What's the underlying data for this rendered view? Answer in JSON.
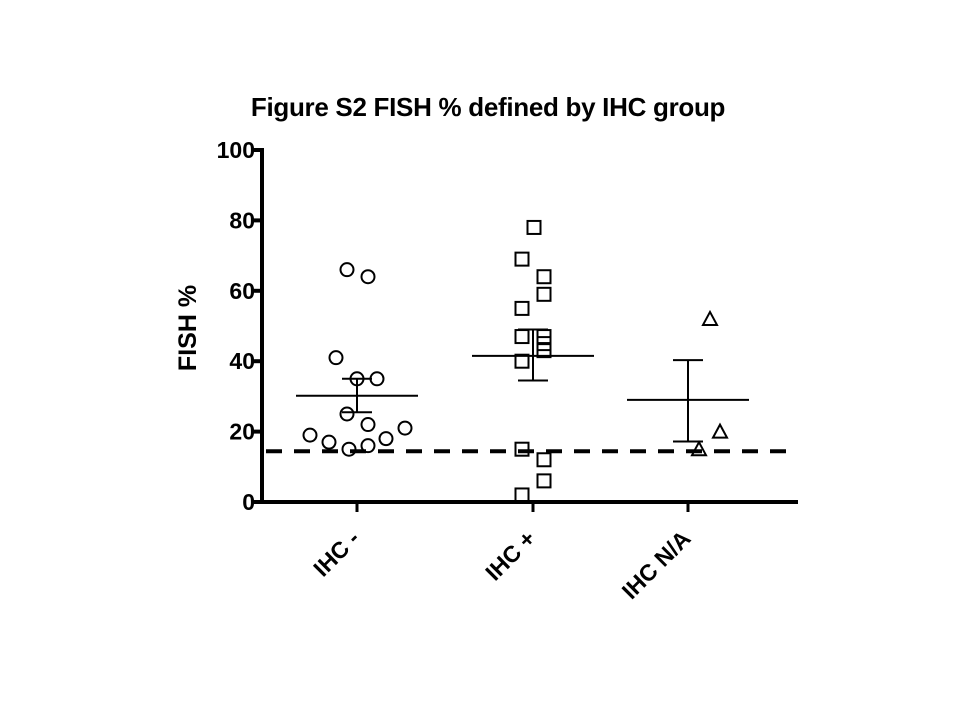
{
  "chart_data": {
    "type": "scatter",
    "subtype": "column scatter with mean and SEM",
    "title": "Figure S2   FISH % defined by IHC group",
    "xlabel": "",
    "ylabel": "FISH %",
    "ylim": [
      0,
      100
    ],
    "yticks": [
      0,
      20,
      40,
      60,
      80,
      100
    ],
    "grid": false,
    "legend": null,
    "categories": [
      "IHC -",
      "IHC +",
      "IHC N/A"
    ],
    "series": [
      {
        "name": "IHC -",
        "marker": "circle",
        "values": [
          66,
          64,
          41,
          35,
          35,
          25,
          22,
          19,
          17,
          15,
          16,
          18,
          21
        ],
        "offsets": [
          -10,
          11,
          -21,
          0,
          20,
          -10,
          11,
          -47,
          -28,
          -8,
          11,
          29,
          48
        ],
        "mean": 30.2,
        "sem_upper": 35.0,
        "sem_lower": 25.5
      },
      {
        "name": "IHC +",
        "marker": "square",
        "values": [
          78,
          69,
          64,
          59,
          55,
          47,
          47,
          45,
          43,
          40,
          15,
          12,
          6,
          2
        ],
        "offsets": [
          1,
          -11,
          11,
          11,
          -11,
          -11,
          11,
          11,
          11,
          -11,
          -11,
          11,
          11,
          -11
        ],
        "mean": 41.5,
        "sem_upper": 49.0,
        "sem_lower": 34.5
      },
      {
        "name": "IHC N/A",
        "marker": "triangle",
        "values": [
          52,
          20,
          15
        ],
        "offsets": [
          22,
          32,
          11
        ],
        "mean": 29.0,
        "sem_upper": 40.3,
        "sem_lower": 17.2
      }
    ],
    "annotations": [
      {
        "type": "hline",
        "style": "dashed",
        "y": 15,
        "description": "cutoff threshold"
      }
    ]
  }
}
